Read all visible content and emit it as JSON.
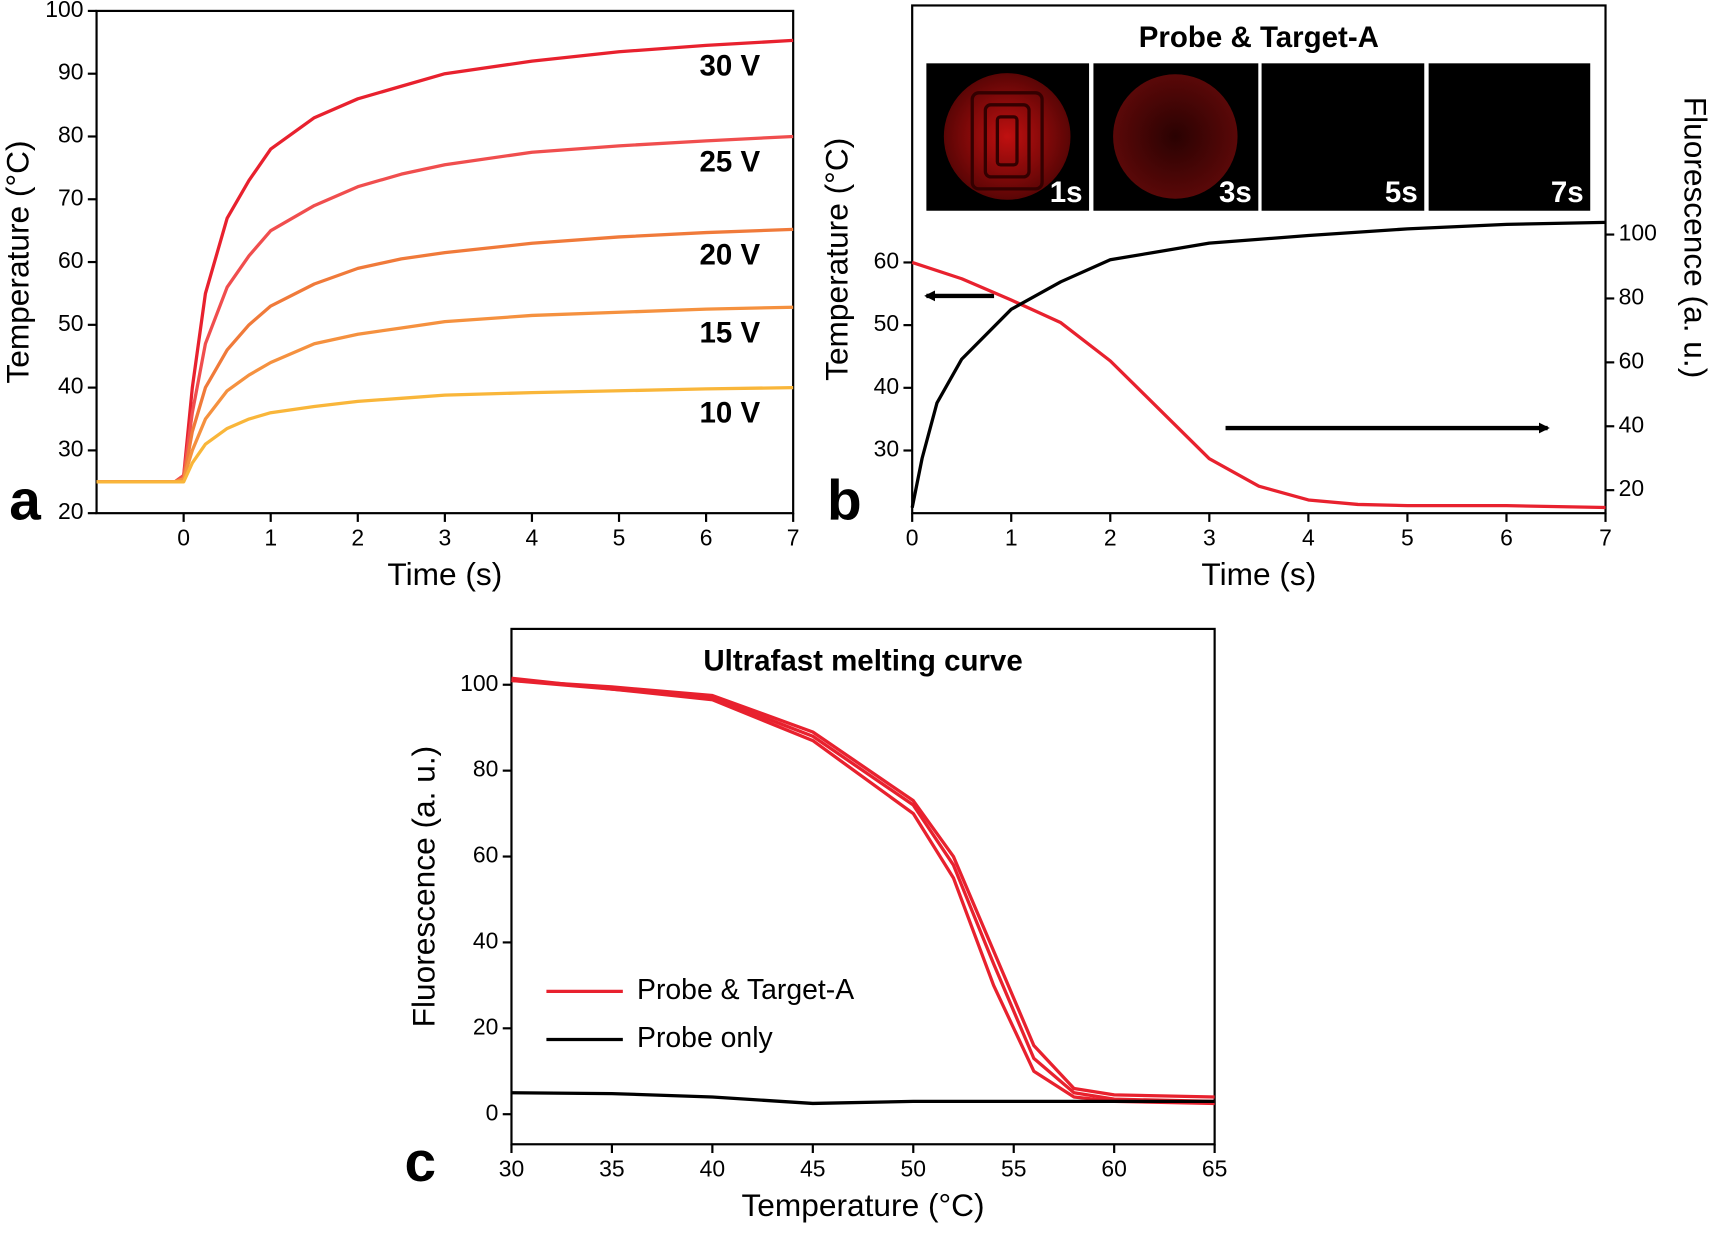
{
  "chart_data": [
    {
      "type": "line",
      "panel": "a",
      "xlabel": "Time (s)",
      "ylabel": "Temperature (°C)",
      "x": [
        -1,
        -0.1,
        0,
        0.1,
        0.25,
        0.5,
        0.75,
        1,
        1.5,
        2,
        2.5,
        3,
        4,
        5,
        6,
        7
      ],
      "xlim": [
        -1,
        7
      ],
      "xticks": [
        0,
        1,
        2,
        3,
        4,
        5,
        6,
        7
      ],
      "ylim": [
        20,
        100
      ],
      "yticks": [
        20,
        30,
        40,
        50,
        60,
        70,
        80,
        90,
        100
      ],
      "series": [
        {
          "name": "30 V",
          "color": "#e8212e",
          "values": [
            25,
            25,
            26,
            40,
            55,
            67,
            73,
            78,
            83,
            86,
            88,
            90,
            92,
            93.5,
            94.5,
            95.3
          ]
        },
        {
          "name": "25 V",
          "color": "#f04e4e",
          "values": [
            25,
            25,
            26,
            36,
            47,
            56,
            61,
            65,
            69,
            72,
            74,
            75.5,
            77.5,
            78.5,
            79.3,
            80
          ]
        },
        {
          "name": "20 V",
          "color": "#f07a3a",
          "values": [
            25,
            25,
            25.5,
            33,
            40,
            46,
            50,
            53,
            56.5,
            59,
            60.5,
            61.5,
            63,
            64,
            64.7,
            65.2
          ]
        },
        {
          "name": "15 V",
          "color": "#f5913f",
          "values": [
            25,
            25,
            25.5,
            30,
            35,
            39.5,
            42,
            44,
            47,
            48.5,
            49.5,
            50.5,
            51.5,
            52,
            52.5,
            52.8
          ]
        },
        {
          "name": "10 V",
          "color": "#f9b63a",
          "values": [
            25,
            25,
            25,
            28,
            31,
            33.5,
            35,
            36,
            37,
            37.8,
            38.3,
            38.8,
            39.2,
            39.5,
            39.8,
            40
          ]
        }
      ]
    },
    {
      "type": "line",
      "panel": "b",
      "title": "Probe & Target-A",
      "image_labels": [
        "1s",
        "3s",
        "5s",
        "7s"
      ],
      "xlabel": "Time (s)",
      "ylabel": "Temperature (°C)",
      "y2label": "Fluorescence (a. u.)",
      "xlim": [
        0,
        7
      ],
      "xticks": [
        0,
        1,
        2,
        3,
        4,
        5,
        6,
        7
      ],
      "ylim": [
        20,
        101
      ],
      "yticks": [
        30,
        40,
        50,
        60
      ],
      "y2lim": [
        12.8,
        171.7
      ],
      "y2ticks": [
        20,
        40,
        60,
        80,
        100
      ],
      "series": [
        {
          "color": "#e8212e",
          "x": [
            0,
            0.5,
            1,
            1.5,
            2,
            2.5,
            3,
            3.5,
            4,
            4.5,
            5,
            6,
            7
          ],
          "values": [
            60,
            57.4,
            54,
            50.4,
            44.3,
            36.5,
            28.7,
            24.3,
            22.1,
            21.4,
            21.2,
            21.2,
            20.9
          ]
        },
        {
          "color": "#000000",
          "axis": "y2",
          "x": [
            0,
            0.1,
            0.25,
            0.5,
            1,
            1.5,
            2,
            3,
            4,
            5,
            6,
            7
          ],
          "values": [
            14.5,
            30,
            47.3,
            61,
            76.6,
            85.2,
            92.1,
            97.3,
            99.7,
            101.8,
            103.2,
            103.8
          ]
        }
      ]
    },
    {
      "type": "line",
      "panel": "c",
      "title": "Ultrafast melting curve",
      "xlabel": "Temperature (°C)",
      "ylabel": "Fluorescence (a. u.)",
      "x": [
        30,
        35,
        40,
        45,
        50,
        52,
        54,
        56,
        58,
        60,
        65
      ],
      "xlim": [
        30,
        65
      ],
      "xticks": [
        30,
        35,
        40,
        45,
        50,
        55,
        60,
        65
      ],
      "ylim": [
        -7,
        113
      ],
      "yticks": [
        0,
        20,
        40,
        60,
        80,
        100
      ],
      "legend": "lower left",
      "series": [
        {
          "name": "Probe & Target-A",
          "color": "#e8212e",
          "values": [
            101,
            99,
            96.5,
            87,
            70,
            55,
            30,
            10,
            4,
            3,
            2.5
          ]
        },
        {
          "color": "#e8212e",
          "values": [
            101.5,
            99,
            97,
            88,
            72,
            58,
            35,
            13,
            5,
            3.5,
            3
          ]
        },
        {
          "color": "#e8212e",
          "values": [
            101,
            99.5,
            97.5,
            89,
            73,
            60,
            38,
            16,
            6,
            4.5,
            4
          ]
        },
        {
          "name": "Probe only",
          "color": "#000000",
          "values": [
            5,
            4.8,
            4,
            2.5,
            3,
            3,
            3,
            3,
            3,
            3,
            3
          ]
        }
      ]
    }
  ]
}
